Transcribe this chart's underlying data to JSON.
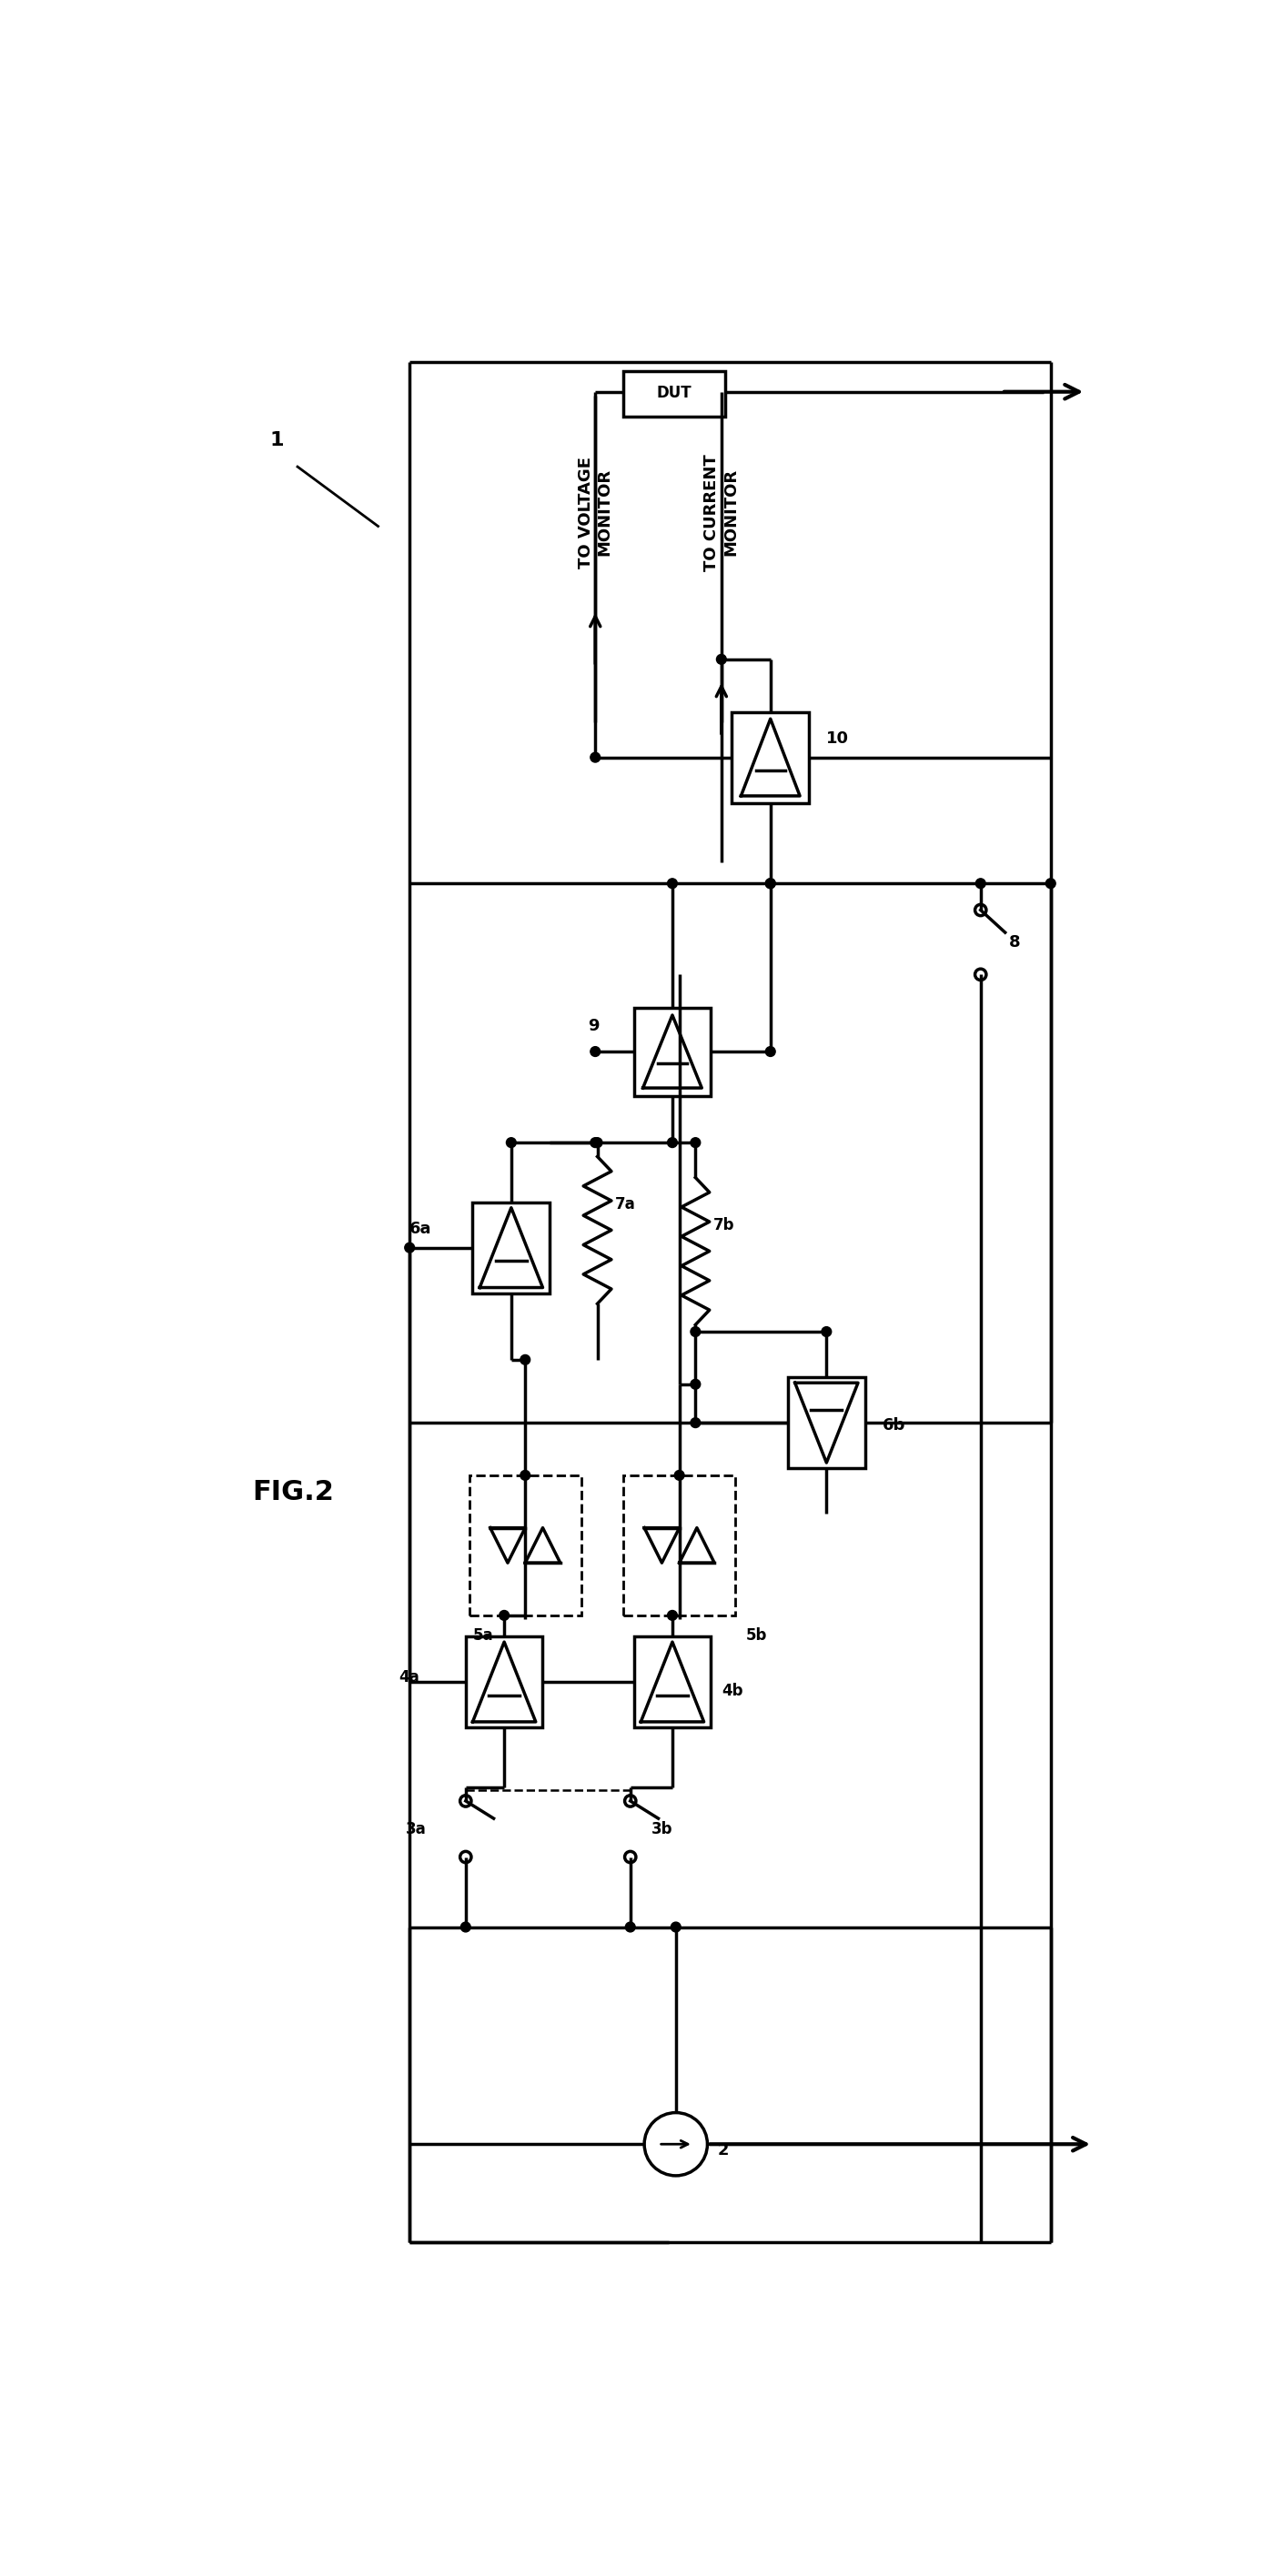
{
  "bg_color": "#ffffff",
  "labels": {
    "fig": "FIG.2",
    "num1": "1",
    "num2": "2",
    "num3a": "3a",
    "num3b": "3b",
    "num4a": "4a",
    "num4b": "4b",
    "num5a": "5a",
    "num5b": "5b",
    "num6a": "6a",
    "num6b": "6b",
    "num7a": "7a",
    "num7b": "7b",
    "num8": "8",
    "num9": "9",
    "num10": "10",
    "voltage_mon": "TO VOLTAGE\nMONITOR",
    "current_mon": "TO CURRENT\nMONITOR",
    "dut": "DUT"
  }
}
